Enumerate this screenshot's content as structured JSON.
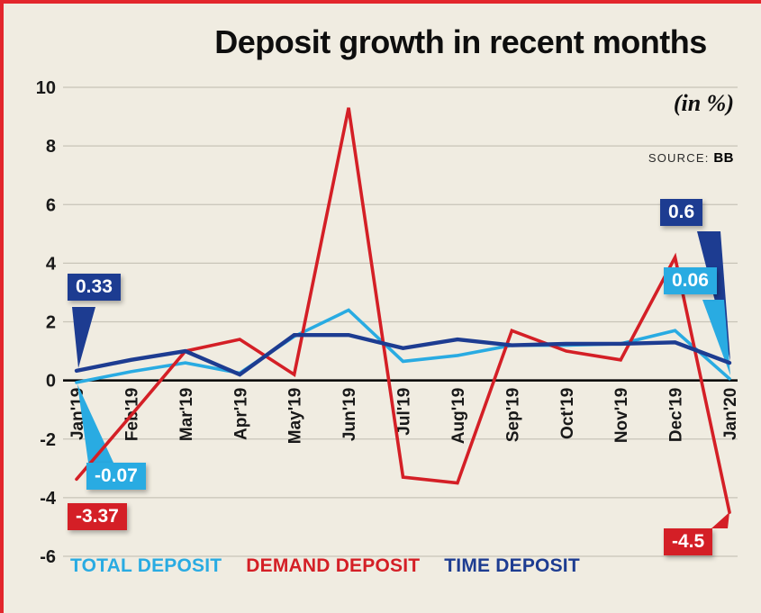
{
  "header": {
    "unit_note": "(in %)",
    "source_label": "SOURCE:",
    "source_value": "BB"
  },
  "colors": {
    "background": "#f0ece1",
    "frame_accent": "#e3262c",
    "grid": "#c8c4b8",
    "axis": "#000000",
    "total": "#29abe2",
    "demand": "#d41f26",
    "time": "#1d3c91",
    "text": "#191919"
  },
  "chart_data": {
    "type": "line",
    "title": "Deposit growth in recent months",
    "unit": "in %",
    "source": "BB",
    "categories": [
      "Jan'19",
      "Feb'19",
      "Mar'19",
      "Apr'19",
      "May'19",
      "Jun'19",
      "Jul'19",
      "Aug'19",
      "Sep'19",
      "Oct'19",
      "Nov'19",
      "Dec'19",
      "Jan'20"
    ],
    "series": [
      {
        "name": "TOTAL DEPOSIT",
        "color_key": "total",
        "values": [
          -0.07,
          0.3,
          0.6,
          0.25,
          1.5,
          2.4,
          0.65,
          0.85,
          1.2,
          1.2,
          1.25,
          1.7,
          0.06
        ]
      },
      {
        "name": "DEMAND DEPOSIT",
        "color_key": "demand",
        "values": [
          -3.37,
          -1.2,
          1.0,
          1.4,
          0.2,
          9.3,
          -3.3,
          -3.5,
          1.7,
          1.0,
          0.7,
          4.2,
          -4.5
        ]
      },
      {
        "name": "TIME DEPOSIT",
        "color_key": "time",
        "values": [
          0.33,
          0.7,
          1.0,
          0.2,
          1.55,
          1.55,
          1.1,
          1.4,
          1.2,
          1.25,
          1.25,
          1.3,
          0.6
        ]
      }
    ],
    "ylim": [
      -6,
      10
    ],
    "yticks": [
      10,
      8,
      6,
      4,
      2,
      0,
      -2,
      -4,
      -6
    ],
    "grid": true,
    "legend_position": "bottom",
    "callouts": [
      {
        "series": "TIME DEPOSIT",
        "category": "Jan'19",
        "label": "0.33"
      },
      {
        "series": "TOTAL DEPOSIT",
        "category": "Jan'19",
        "label": "-0.07"
      },
      {
        "series": "DEMAND DEPOSIT",
        "category": "Jan'19",
        "label": "-3.37"
      },
      {
        "series": "TIME DEPOSIT",
        "category": "Jan'20",
        "label": "0.6"
      },
      {
        "series": "TOTAL DEPOSIT",
        "category": "Jan'20",
        "label": "0.06"
      },
      {
        "series": "DEMAND DEPOSIT",
        "category": "Jan'20",
        "label": "-4.5"
      }
    ]
  }
}
